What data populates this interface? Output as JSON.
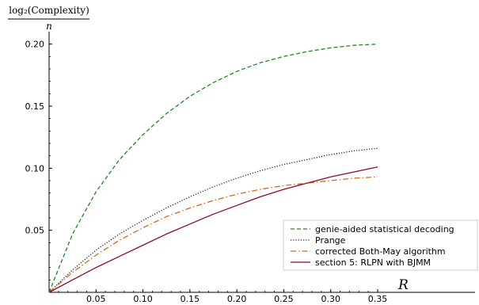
{
  "chart_data": {
    "type": "line",
    "ylabel": "log₂(Complexity)",
    "ylabel_denominator": "n",
    "xlabel": "R",
    "xlim": [
      0,
      0.35
    ],
    "ylim": [
      0,
      0.21
    ],
    "xticks": [
      0.05,
      0.1,
      0.15,
      0.2,
      0.25,
      0.3,
      0.35
    ],
    "xtick_labels": [
      "0.05",
      "0.10",
      "0.15",
      "0.20",
      "0.25",
      "0.30",
      "0.35"
    ],
    "yticks": [
      0.05,
      0.1,
      0.15,
      0.2
    ],
    "ytick_labels": [
      "0.05",
      "0.10",
      "0.15",
      "0.20"
    ],
    "grid": false,
    "legend_position": "bottom-right",
    "x": [
      0,
      0.025,
      0.05,
      0.075,
      0.1,
      0.125,
      0.15,
      0.175,
      0.2,
      0.225,
      0.25,
      0.275,
      0.3,
      0.325,
      0.35
    ],
    "series": [
      {
        "name": "genie-aided statistical decoding",
        "color": "#1a8a1a",
        "style": "dashed",
        "values": [
          0,
          0.047,
          0.081,
          0.107,
          0.127,
          0.144,
          0.158,
          0.169,
          0.178,
          0.185,
          0.19,
          0.194,
          0.197,
          0.199,
          0.2
        ]
      },
      {
        "name": "Prange",
        "color": "#222222",
        "style": "dotted",
        "values": [
          0,
          0.018,
          0.034,
          0.047,
          0.058,
          0.068,
          0.077,
          0.085,
          0.092,
          0.098,
          0.103,
          0.107,
          0.111,
          0.114,
          0.116
        ]
      },
      {
        "name": "corrected Both-May algorithm",
        "color": "#d2691e",
        "style": "dashdot",
        "values": [
          0,
          0.016,
          0.03,
          0.042,
          0.052,
          0.061,
          0.068,
          0.074,
          0.079,
          0.083,
          0.086,
          0.088,
          0.09,
          0.092,
          0.093
        ]
      },
      {
        "name": "section 5: RLPN with BJMM",
        "color": "#8b0a2b",
        "style": "solid",
        "values": [
          0,
          0.01,
          0.02,
          0.029,
          0.038,
          0.047,
          0.055,
          0.063,
          0.07,
          0.077,
          0.083,
          0.088,
          0.093,
          0.097,
          0.101
        ]
      }
    ]
  }
}
